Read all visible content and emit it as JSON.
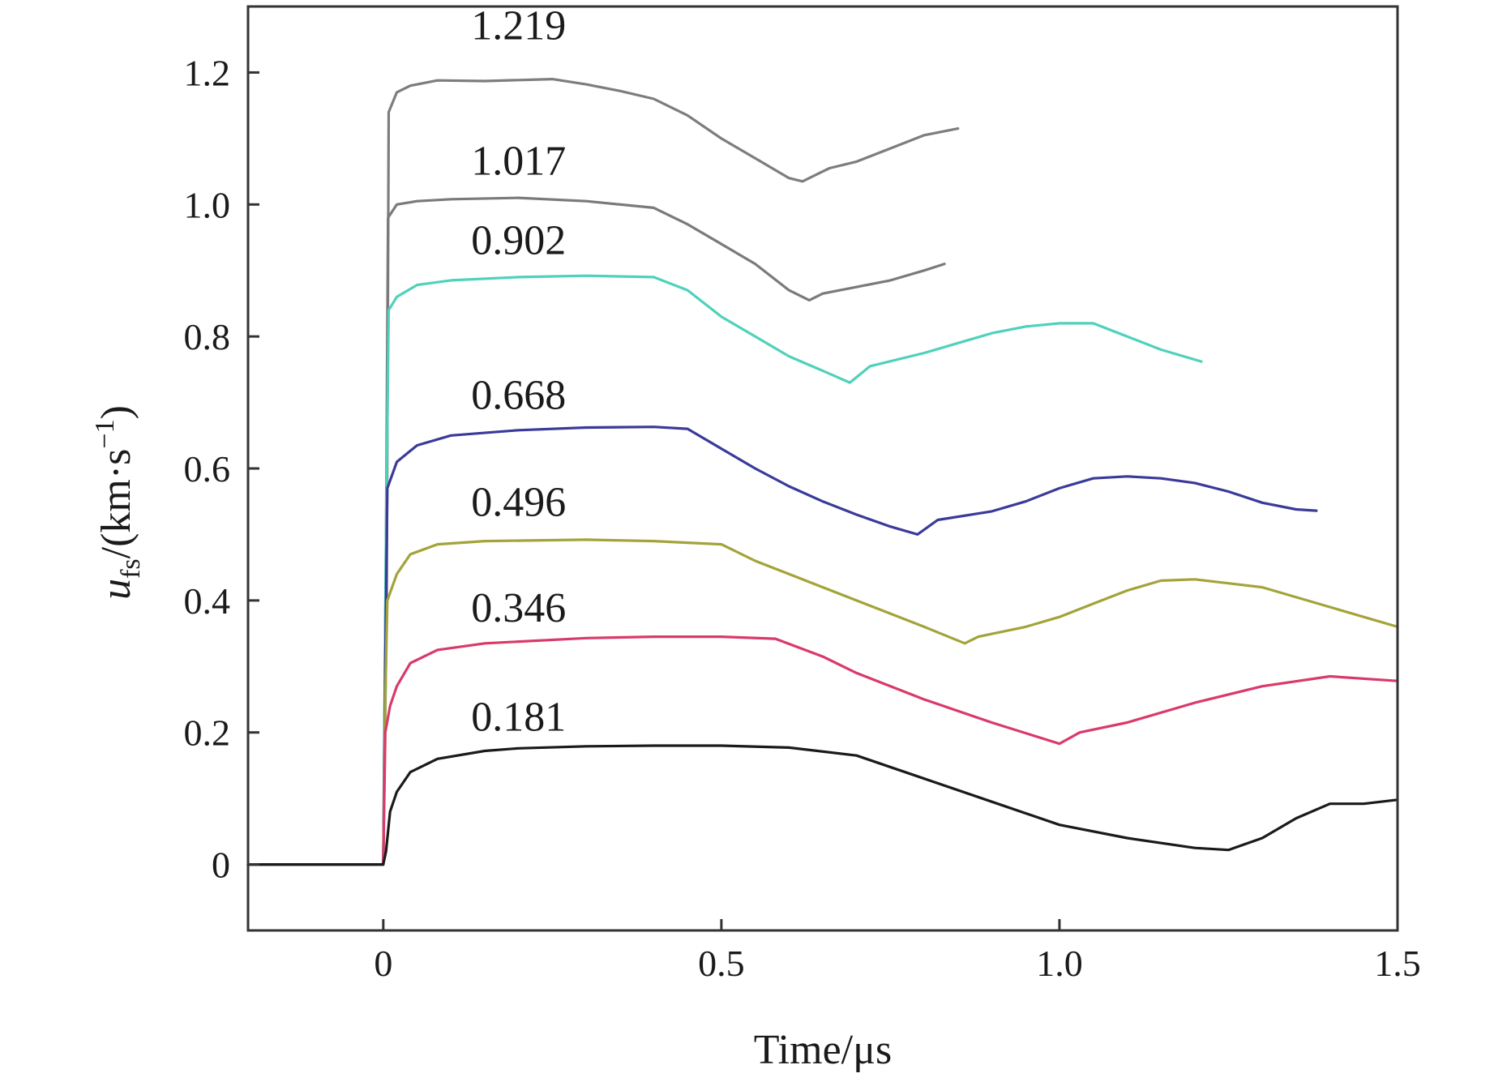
{
  "chart_data": {
    "type": "line",
    "xlabel": "Time/μs",
    "ylabel_parts": {
      "var": "u",
      "sub": "fs",
      "unit": "/(km·s",
      "sup": "−1",
      "close": ")"
    },
    "xlim": [
      -0.2,
      1.5
    ],
    "ylim": [
      -0.1,
      1.3
    ],
    "xticks": [
      0,
      0.5,
      1.0,
      1.5
    ],
    "xtick_labels": [
      "0",
      "0.5",
      "1.0",
      "1.5"
    ],
    "yticks": [
      0,
      0.2,
      0.4,
      0.6,
      0.8,
      1.0,
      1.2
    ],
    "ytick_labels": [
      "0",
      "0.2",
      "0.4",
      "0.6",
      "0.8",
      "1.0",
      "1.2"
    ],
    "grid": false,
    "legend": "none",
    "series": [
      {
        "label": "1.219",
        "color": "#7d7d7d",
        "label_at": [
          0.13,
          1.25
        ],
        "points": [
          [
            -0.2,
            0
          ],
          [
            0,
            0
          ],
          [
            0.005,
            0.4
          ],
          [
            0.008,
            1.14
          ],
          [
            0.02,
            1.17
          ],
          [
            0.04,
            1.18
          ],
          [
            0.08,
            1.188
          ],
          [
            0.15,
            1.187
          ],
          [
            0.25,
            1.19
          ],
          [
            0.3,
            1.182
          ],
          [
            0.35,
            1.172
          ],
          [
            0.4,
            1.16
          ],
          [
            0.45,
            1.135
          ],
          [
            0.5,
            1.1
          ],
          [
            0.55,
            1.07
          ],
          [
            0.6,
            1.04
          ],
          [
            0.62,
            1.035
          ],
          [
            0.64,
            1.045
          ],
          [
            0.66,
            1.055
          ],
          [
            0.7,
            1.065
          ],
          [
            0.75,
            1.085
          ],
          [
            0.8,
            1.105
          ],
          [
            0.85,
            1.115
          ]
        ]
      },
      {
        "label": "1.017",
        "color": "#7a7a7a",
        "label_at": [
          0.13,
          1.045
        ],
        "points": [
          [
            -0.2,
            0
          ],
          [
            0,
            0
          ],
          [
            0.004,
            0.5
          ],
          [
            0.007,
            0.98
          ],
          [
            0.02,
            1.0
          ],
          [
            0.05,
            1.005
          ],
          [
            0.1,
            1.008
          ],
          [
            0.2,
            1.01
          ],
          [
            0.3,
            1.005
          ],
          [
            0.4,
            0.995
          ],
          [
            0.45,
            0.97
          ],
          [
            0.5,
            0.94
          ],
          [
            0.55,
            0.91
          ],
          [
            0.6,
            0.87
          ],
          [
            0.63,
            0.855
          ],
          [
            0.65,
            0.865
          ],
          [
            0.7,
            0.875
          ],
          [
            0.75,
            0.885
          ],
          [
            0.8,
            0.9
          ],
          [
            0.83,
            0.91
          ]
        ]
      },
      {
        "label": "0.902",
        "color": "#4fd1bb",
        "label_at": [
          0.13,
          0.925
        ],
        "points": [
          [
            -0.2,
            0
          ],
          [
            0,
            0
          ],
          [
            0.004,
            0.5
          ],
          [
            0.008,
            0.84
          ],
          [
            0.02,
            0.86
          ],
          [
            0.05,
            0.878
          ],
          [
            0.1,
            0.885
          ],
          [
            0.2,
            0.89
          ],
          [
            0.3,
            0.892
          ],
          [
            0.4,
            0.89
          ],
          [
            0.45,
            0.87
          ],
          [
            0.5,
            0.83
          ],
          [
            0.55,
            0.8
          ],
          [
            0.6,
            0.77
          ],
          [
            0.65,
            0.748
          ],
          [
            0.69,
            0.73
          ],
          [
            0.72,
            0.755
          ],
          [
            0.8,
            0.775
          ],
          [
            0.85,
            0.79
          ],
          [
            0.9,
            0.805
          ],
          [
            0.95,
            0.815
          ],
          [
            1.0,
            0.82
          ],
          [
            1.05,
            0.82
          ],
          [
            1.1,
            0.8
          ],
          [
            1.15,
            0.78
          ],
          [
            1.21,
            0.762
          ]
        ]
      },
      {
        "label": "0.668",
        "color": "#3a3a9a",
        "label_at": [
          0.13,
          0.69
        ],
        "points": [
          [
            -0.2,
            0
          ],
          [
            0,
            0
          ],
          [
            0.003,
            0.3
          ],
          [
            0.006,
            0.57
          ],
          [
            0.02,
            0.61
          ],
          [
            0.05,
            0.635
          ],
          [
            0.1,
            0.65
          ],
          [
            0.2,
            0.658
          ],
          [
            0.3,
            0.662
          ],
          [
            0.4,
            0.663
          ],
          [
            0.45,
            0.66
          ],
          [
            0.5,
            0.63
          ],
          [
            0.55,
            0.6
          ],
          [
            0.6,
            0.573
          ],
          [
            0.65,
            0.55
          ],
          [
            0.7,
            0.53
          ],
          [
            0.75,
            0.512
          ],
          [
            0.79,
            0.5
          ],
          [
            0.82,
            0.522
          ],
          [
            0.9,
            0.535
          ],
          [
            0.95,
            0.55
          ],
          [
            1.0,
            0.57
          ],
          [
            1.05,
            0.585
          ],
          [
            1.1,
            0.588
          ],
          [
            1.15,
            0.585
          ],
          [
            1.2,
            0.578
          ],
          [
            1.25,
            0.565
          ],
          [
            1.3,
            0.548
          ],
          [
            1.35,
            0.538
          ],
          [
            1.38,
            0.536
          ]
        ]
      },
      {
        "label": "0.496",
        "color": "#a3a33a",
        "label_at": [
          0.13,
          0.528
        ],
        "points": [
          [
            -0.2,
            0
          ],
          [
            0,
            0
          ],
          [
            0.003,
            0.25
          ],
          [
            0.006,
            0.4
          ],
          [
            0.02,
            0.44
          ],
          [
            0.04,
            0.47
          ],
          [
            0.08,
            0.485
          ],
          [
            0.15,
            0.49
          ],
          [
            0.3,
            0.492
          ],
          [
            0.4,
            0.49
          ],
          [
            0.5,
            0.485
          ],
          [
            0.55,
            0.46
          ],
          [
            0.6,
            0.44
          ],
          [
            0.65,
            0.42
          ],
          [
            0.7,
            0.4
          ],
          [
            0.75,
            0.38
          ],
          [
            0.8,
            0.36
          ],
          [
            0.86,
            0.335
          ],
          [
            0.88,
            0.345
          ],
          [
            0.95,
            0.36
          ],
          [
            1.0,
            0.375
          ],
          [
            1.05,
            0.395
          ],
          [
            1.1,
            0.415
          ],
          [
            1.15,
            0.43
          ],
          [
            1.2,
            0.432
          ],
          [
            1.3,
            0.42
          ],
          [
            1.4,
            0.39
          ],
          [
            1.5,
            0.36
          ]
        ]
      },
      {
        "label": "0.346",
        "color": "#d93a6a",
        "label_at": [
          0.13,
          0.368
        ],
        "points": [
          [
            -0.2,
            0
          ],
          [
            0,
            0
          ],
          [
            0.003,
            0.2
          ],
          [
            0.01,
            0.24
          ],
          [
            0.02,
            0.27
          ],
          [
            0.04,
            0.305
          ],
          [
            0.08,
            0.325
          ],
          [
            0.15,
            0.335
          ],
          [
            0.3,
            0.343
          ],
          [
            0.4,
            0.345
          ],
          [
            0.5,
            0.345
          ],
          [
            0.58,
            0.342
          ],
          [
            0.65,
            0.315
          ],
          [
            0.7,
            0.29
          ],
          [
            0.8,
            0.25
          ],
          [
            0.9,
            0.215
          ],
          [
            1.0,
            0.183
          ],
          [
            1.03,
            0.2
          ],
          [
            1.1,
            0.215
          ],
          [
            1.2,
            0.245
          ],
          [
            1.3,
            0.27
          ],
          [
            1.4,
            0.285
          ],
          [
            1.5,
            0.278
          ]
        ]
      },
      {
        "label": "0.181",
        "color": "#1a1a1a",
        "label_at": [
          0.13,
          0.203
        ],
        "points": [
          [
            -0.2,
            0
          ],
          [
            0,
            0
          ],
          [
            0.004,
            0.02
          ],
          [
            0.01,
            0.08
          ],
          [
            0.02,
            0.11
          ],
          [
            0.04,
            0.14
          ],
          [
            0.08,
            0.16
          ],
          [
            0.15,
            0.172
          ],
          [
            0.2,
            0.176
          ],
          [
            0.3,
            0.179
          ],
          [
            0.4,
            0.18
          ],
          [
            0.5,
            0.18
          ],
          [
            0.6,
            0.177
          ],
          [
            0.7,
            0.165
          ],
          [
            0.8,
            0.13
          ],
          [
            0.9,
            0.095
          ],
          [
            1.0,
            0.06
          ],
          [
            1.1,
            0.04
          ],
          [
            1.2,
            0.025
          ],
          [
            1.25,
            0.022
          ],
          [
            1.3,
            0.04
          ],
          [
            1.35,
            0.07
          ],
          [
            1.4,
            0.092
          ],
          [
            1.45,
            0.092
          ],
          [
            1.5,
            0.098
          ]
        ]
      }
    ]
  }
}
